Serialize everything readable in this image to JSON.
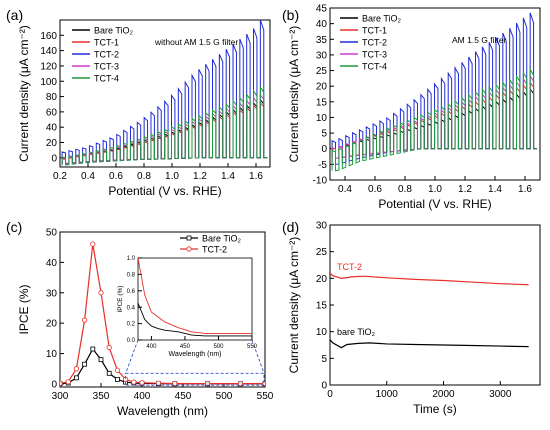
{
  "chart_data": [
    {
      "panel": "(a)",
      "type": "line",
      "xlabel": "Potential (V vs. RHE)",
      "ylabel": "Current density (μA cm⁻²)",
      "xlim": [
        0.2,
        1.7
      ],
      "ylim": [
        -12,
        180
      ],
      "xticks": [
        "0.2",
        "0.4",
        "0.6",
        "0.8",
        "1.0",
        "1.2",
        "1.4",
        "1.6"
      ],
      "yticks": [
        "0",
        "20",
        "40",
        "60",
        "80",
        "100",
        "120",
        "140",
        "160"
      ],
      "annotation": "without AM 1.5 G filter",
      "legend_position": "top-left",
      "chopped_light": true,
      "series": [
        {
          "name": "Bare TiO₂",
          "color": "#000000",
          "x": [
            0.2,
            0.4,
            0.6,
            0.8,
            1.0,
            1.2,
            1.4,
            1.6,
            1.68
          ],
          "light": [
            -3,
            4,
            10,
            20,
            30,
            42,
            55,
            66,
            72
          ],
          "dark": [
            -8,
            -5,
            -3,
            -2,
            -1,
            0,
            0,
            0,
            0
          ]
        },
        {
          "name": "TCT-1",
          "color": "#e8302a",
          "x": [
            0.2,
            0.4,
            0.6,
            0.8,
            1.0,
            1.2,
            1.4,
            1.6,
            1.68
          ],
          "light": [
            -3,
            3,
            9,
            18,
            28,
            40,
            52,
            63,
            68
          ],
          "dark": [
            -8,
            -5,
            -3,
            -2,
            -1,
            0,
            0,
            0,
            0
          ]
        },
        {
          "name": "TCT-2",
          "color": "#1f2bd6",
          "x": [
            0.2,
            0.4,
            0.6,
            0.8,
            1.0,
            1.2,
            1.4,
            1.6,
            1.68
          ],
          "light": [
            5,
            12,
            25,
            45,
            72,
            105,
            130,
            155,
            172
          ],
          "dark": [
            -10,
            -6,
            -4,
            -2,
            -1,
            0,
            0,
            0,
            0
          ]
        },
        {
          "name": "TCT-3",
          "color": "#d23ad2",
          "x": [
            0.2,
            0.4,
            0.6,
            0.8,
            1.0,
            1.2,
            1.4,
            1.6,
            1.68
          ],
          "light": [
            -2,
            4,
            11,
            22,
            33,
            46,
            59,
            72,
            78
          ],
          "dark": [
            -8,
            -5,
            -3,
            -2,
            -1,
            0,
            0,
            0,
            0
          ]
        },
        {
          "name": "TCT-4",
          "color": "#1d9a3c",
          "x": [
            0.2,
            0.4,
            0.6,
            0.8,
            1.0,
            1.2,
            1.4,
            1.6,
            1.68
          ],
          "light": [
            -1,
            5,
            13,
            24,
            36,
            50,
            64,
            80,
            88
          ],
          "dark": [
            -10,
            -6,
            -4,
            -2,
            -1,
            0,
            0,
            0,
            0
          ]
        }
      ]
    },
    {
      "panel": "(b)",
      "type": "line",
      "xlabel": "Potential (V vs. RHE)",
      "ylabel": "Current density (μA cm⁻²)",
      "xlim": [
        0.3,
        1.7
      ],
      "ylim": [
        -10,
        45
      ],
      "xticks": [
        "0.4",
        "0.6",
        "0.8",
        "1.0",
        "1.2",
        "1.4",
        "1.6"
      ],
      "yticks": [
        "-10",
        "-5",
        "0",
        "5",
        "10",
        "15",
        "20",
        "25",
        "30",
        "35",
        "40",
        "45"
      ],
      "annotation": "AM 1.5 G filter",
      "legend_position": "top-left",
      "chopped_light": true,
      "series": [
        {
          "name": "Bare TiO₂",
          "color": "#000000",
          "x": [
            0.35,
            0.5,
            0.7,
            0.9,
            1.1,
            1.3,
            1.5,
            1.68
          ],
          "light": [
            0,
            2,
            4,
            6.5,
            9,
            12,
            15,
            18
          ],
          "dark": [
            -3,
            -2,
            -1,
            0,
            0,
            0,
            0,
            0
          ]
        },
        {
          "name": "TCT-1",
          "color": "#e8302a",
          "x": [
            0.35,
            0.5,
            0.7,
            0.9,
            1.1,
            1.3,
            1.5,
            1.68
          ],
          "light": [
            0,
            2.5,
            5,
            8,
            11,
            14,
            17,
            20
          ],
          "dark": [
            -3,
            -2,
            -1,
            0,
            0,
            0,
            0,
            0
          ]
        },
        {
          "name": "TCT-2",
          "color": "#1f2bd6",
          "x": [
            0.35,
            0.5,
            0.7,
            0.9,
            1.1,
            1.3,
            1.5,
            1.68
          ],
          "light": [
            2,
            5,
            9,
            15,
            22,
            29,
            35,
            41
          ],
          "dark": [
            -5,
            -3,
            -1,
            0,
            0,
            0,
            0,
            0
          ]
        },
        {
          "name": "TCT-3",
          "color": "#d23ad2",
          "x": [
            0.35,
            0.5,
            0.7,
            0.9,
            1.1,
            1.3,
            1.5,
            1.68
          ],
          "light": [
            0,
            2.5,
            5.5,
            8.5,
            12,
            15.5,
            18.5,
            22
          ],
          "dark": [
            -3,
            -2,
            -1,
            0,
            0,
            0,
            0,
            0
          ]
        },
        {
          "name": "TCT-4",
          "color": "#1d9a3c",
          "x": [
            0.35,
            0.5,
            0.7,
            0.9,
            1.1,
            1.3,
            1.5,
            1.68
          ],
          "light": [
            -1,
            2,
            6,
            9.5,
            13,
            17,
            20,
            24
          ],
          "dark": [
            -7,
            -4,
            -2,
            0,
            0,
            0,
            0,
            0
          ]
        }
      ]
    },
    {
      "panel": "(c)",
      "type": "line",
      "xlabel": "Wavelength (nm)",
      "ylabel": "IPCE (%)",
      "xlim": [
        300,
        550
      ],
      "ylim": [
        -1,
        50
      ],
      "xticks": [
        "300",
        "350",
        "400",
        "450",
        "500",
        "550"
      ],
      "yticks": [
        "0",
        "10",
        "20",
        "30",
        "40",
        "50"
      ],
      "legend_position": "top-right",
      "series": [
        {
          "name": "Bare TiO₂",
          "color": "#000000",
          "marker": "square-open",
          "x": [
            300,
            310,
            320,
            330,
            340,
            350,
            360,
            370,
            380,
            390,
            400,
            420,
            440,
            460,
            480,
            500,
            520,
            540,
            550
          ],
          "values": [
            0.1,
            0.3,
            2.0,
            6.5,
            11.5,
            8.0,
            3.5,
            1.5,
            0.6,
            0.3,
            0.2,
            0.1,
            0.05,
            0.05,
            0.05,
            0.05,
            0.05,
            0.05,
            0.05
          ]
        },
        {
          "name": "TCT-2",
          "color": "#e8302a",
          "marker": "circle-open",
          "x": [
            300,
            310,
            320,
            330,
            340,
            350,
            360,
            370,
            380,
            390,
            400,
            420,
            440,
            460,
            480,
            500,
            520,
            540,
            550
          ],
          "values": [
            0.2,
            0.7,
            5.0,
            21.0,
            46.0,
            30.0,
            12.0,
            4.5,
            1.5,
            0.6,
            0.4,
            0.25,
            0.15,
            0.1,
            0.1,
            0.1,
            0.1,
            0.1,
            0.1
          ]
        }
      ],
      "inset": {
        "xlabel": "Wavelength (nm)",
        "ylabel": "IPCE (%)",
        "xlim": [
          380,
          550
        ],
        "ylim": [
          0,
          1.0
        ],
        "xticks": [
          "400",
          "450",
          "500",
          "550"
        ],
        "yticks": [
          "0.0",
          "0.2",
          "0.4",
          "0.6",
          "0.8",
          "1.0"
        ],
        "series": [
          {
            "name": "Bare TiO₂",
            "color": "#000000",
            "x": [
              380,
              390,
              400,
              410,
              420,
              440,
              460,
              480,
              500,
              520,
              550
            ],
            "values": [
              0.45,
              0.25,
              0.17,
              0.14,
              0.12,
              0.1,
              0.06,
              0.05,
              0.05,
              0.05,
              0.05
            ]
          },
          {
            "name": "TCT-2",
            "color": "#e8302a",
            "x": [
              380,
              390,
              400,
              410,
              420,
              440,
              460,
              480,
              500,
              520,
              550
            ],
            "values": [
              1.0,
              0.55,
              0.34,
              0.28,
              0.22,
              0.15,
              0.1,
              0.08,
              0.08,
              0.08,
              0.08
            ]
          }
        ]
      }
    },
    {
      "panel": "(d)",
      "type": "line",
      "xlabel": "Time (s)",
      "ylabel": "Current density (μA cm⁻²)",
      "xlim": [
        0,
        3700
      ],
      "ylim": [
        0,
        30
      ],
      "xticks": [
        "0",
        "1000",
        "2000",
        "3000"
      ],
      "yticks": [
        "0",
        "5",
        "10",
        "15",
        "20",
        "25",
        "30"
      ],
      "series": [
        {
          "name": "TCT-2",
          "color": "#e8302a",
          "x": [
            0,
            50,
            200,
            400,
            600,
            1000,
            1500,
            2000,
            2500,
            3000,
            3500
          ],
          "values": [
            21.0,
            20.5,
            20.0,
            20.3,
            20.4,
            20.1,
            19.8,
            19.6,
            19.3,
            19.0,
            18.8
          ]
        },
        {
          "name": "bare TiO₂",
          "color": "#000000",
          "x": [
            0,
            50,
            200,
            300,
            500,
            700,
            1000,
            1500,
            2000,
            2500,
            3000,
            3500
          ],
          "values": [
            8.5,
            7.9,
            7.0,
            7.6,
            7.8,
            7.9,
            7.7,
            7.6,
            7.5,
            7.4,
            7.3,
            7.2
          ]
        }
      ]
    }
  ]
}
